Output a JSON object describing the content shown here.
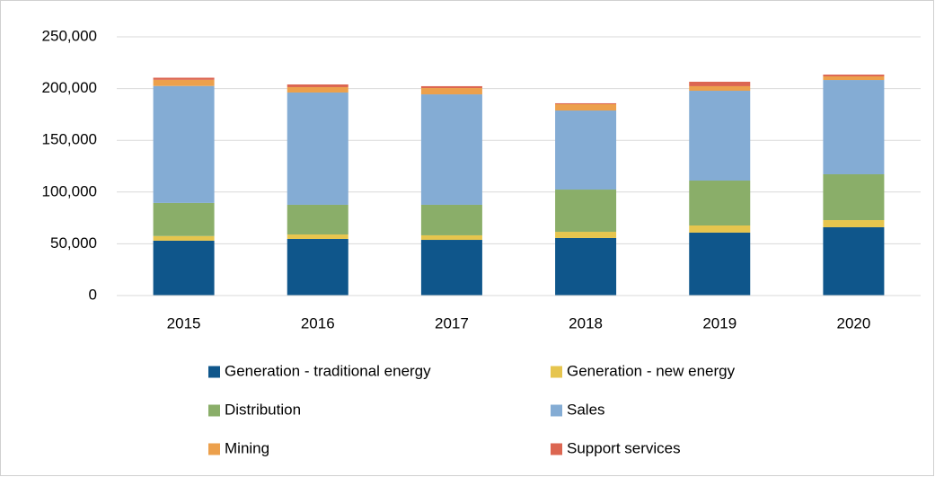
{
  "chart_data": {
    "type": "stacked_bar",
    "categories": [
      "2015",
      "2016",
      "2017",
      "2018",
      "2019",
      "2020"
    ],
    "series": [
      {
        "name": "Generation - traditional energy",
        "color": "#0f568b",
        "values": [
          53000,
          54700,
          53800,
          55600,
          60800,
          66000
        ]
      },
      {
        "name": "Generation - new energy",
        "color": "#e6c54e",
        "values": [
          4500,
          4300,
          4400,
          6000,
          6900,
          6900
        ]
      },
      {
        "name": "Distribution",
        "color": "#8aae69",
        "values": [
          32000,
          28700,
          29500,
          40800,
          43400,
          44300
        ]
      },
      {
        "name": "Sales",
        "color": "#84acd4",
        "values": [
          113000,
          108500,
          106700,
          76400,
          86800,
          91100
        ]
      },
      {
        "name": "Mining",
        "color": "#eca04c",
        "values": [
          6000,
          5200,
          6100,
          6100,
          4400,
          3500
        ]
      },
      {
        "name": "Support services",
        "color": "#dc6651",
        "values": [
          2000,
          2600,
          1800,
          900,
          4300,
          1700
        ]
      }
    ],
    "ylim": [
      0,
      250000
    ],
    "yticks": [
      0,
      {
        "value": 50000,
        "label": "50,000"
      },
      {
        "value": 100000,
        "label": "100,000"
      },
      {
        "value": 150000,
        "label": "150,000"
      },
      {
        "value": 200000,
        "label": "200,000"
      },
      {
        "value": 250000,
        "label": "250,000"
      }
    ],
    "grid": true
  }
}
